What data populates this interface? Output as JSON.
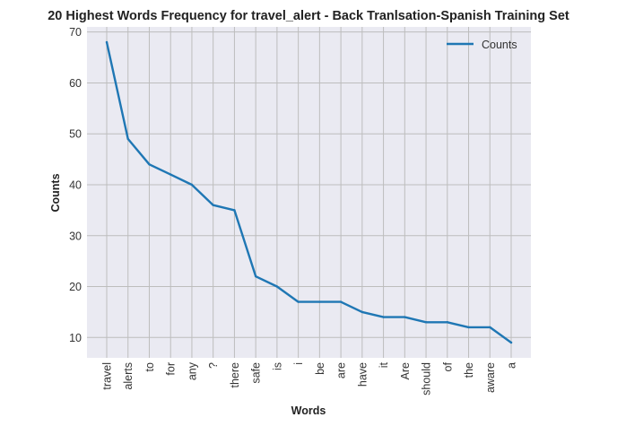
{
  "chart_data": {
    "type": "line",
    "title": "20 Highest Words Frequency for travel_alert - Back Tranlsation-Spanish Training Set",
    "xlabel": "Words",
    "ylabel": "Counts",
    "categories": [
      "travel",
      "alerts",
      "to",
      "for",
      "any",
      "?",
      "there",
      "safe",
      "is",
      "i",
      "be",
      "are",
      "have",
      "it",
      "Are",
      "should",
      "of",
      "the",
      "aware",
      "a"
    ],
    "series": [
      {
        "name": "Counts",
        "values": [
          68,
          49,
          44,
          42,
          40,
          36,
          35,
          22,
          20,
          17,
          17,
          17,
          15,
          14,
          14,
          13,
          13,
          12,
          12,
          9
        ],
        "color": "#1f77b4"
      }
    ],
    "ylim": [
      6,
      71
    ],
    "yticks": [
      10,
      20,
      30,
      40,
      50,
      60,
      70
    ],
    "grid": true,
    "legend": "top-right",
    "background": "#eaeaf2",
    "grid_color": "#bdbdbd"
  }
}
